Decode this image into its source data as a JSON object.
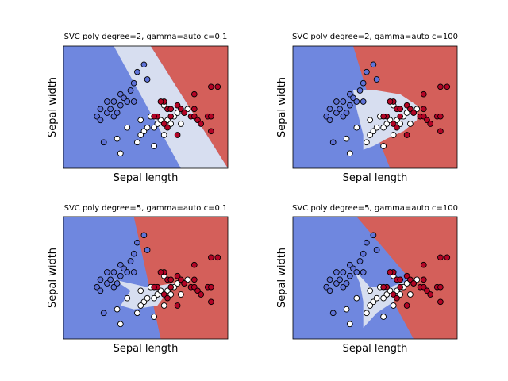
{
  "colors": {
    "class0_region": "#6f87df",
    "class1_region": "#d7def0",
    "class2_region": "#d45f5a",
    "class0_point": "#5f73d8",
    "class1_point": "#ffffff",
    "class2_point": "#b40426",
    "point_edge": "#000000"
  },
  "chart_data": [
    {
      "type": "scatter",
      "title": "SVC poly degree=2, gamma=auto c=0.1",
      "xlabel": "Sepal length",
      "ylabel": "Sepal width",
      "xticks": false,
      "yticks": false,
      "regions": {
        "class0": [
          [
            3.3,
            4.9
          ],
          [
            4.8,
            4.9
          ],
          [
            6.8,
            1.6
          ],
          [
            3.3,
            1.6
          ]
        ],
        "class1": [
          [
            4.8,
            4.9
          ],
          [
            5.9,
            4.9
          ],
          [
            8.2,
            1.6
          ],
          [
            6.8,
            1.6
          ]
        ],
        "class2": [
          [
            5.9,
            4.9
          ],
          [
            8.2,
            4.9
          ],
          [
            8.2,
            1.6
          ]
        ]
      }
    },
    {
      "type": "scatter",
      "title": "SVC poly degree=2, gamma=auto c=100",
      "xlabel": "Sepal length",
      "ylabel": "Sepal width",
      "xticks": false,
      "yticks": false,
      "regions": {
        "class0": [
          [
            3.3,
            4.9
          ],
          [
            5.1,
            4.9
          ],
          [
            5.6,
            3.4
          ],
          [
            5.8,
            2.5
          ],
          [
            6.2,
            1.6
          ],
          [
            3.3,
            1.6
          ]
        ],
        "class1": [
          [
            5.1,
            3.7
          ],
          [
            5.8,
            3.7
          ],
          [
            6.5,
            3.6
          ],
          [
            7.0,
            3.3
          ],
          [
            7.0,
            2.9
          ],
          [
            6.6,
            2.6
          ],
          [
            6.1,
            2.4
          ],
          [
            5.7,
            2.2
          ],
          [
            5.4,
            2.1
          ],
          [
            5.4,
            2.5
          ],
          [
            5.2,
            3.2
          ]
        ],
        "class2": [
          [
            5.1,
            4.9
          ],
          [
            8.2,
            4.9
          ],
          [
            8.2,
            1.6
          ],
          [
            6.2,
            1.6
          ],
          [
            5.8,
            2.5
          ],
          [
            5.6,
            3.4
          ]
        ]
      }
    },
    {
      "type": "scatter",
      "title": "SVC poly degree=5, gamma=auto c=0.1",
      "xlabel": "Sepal length",
      "ylabel": "Sepal width",
      "xticks": false,
      "yticks": false,
      "regions": {
        "class0": [
          [
            3.3,
            4.9
          ],
          [
            5.4,
            4.9
          ],
          [
            6.2,
            1.6
          ],
          [
            3.3,
            1.6
          ]
        ],
        "class1": [
          [
            4.8,
            3.2
          ],
          [
            5.8,
            3.0
          ],
          [
            6.6,
            3.1
          ],
          [
            6.1,
            2.5
          ],
          [
            5.4,
            2.4
          ],
          [
            5.0,
            2.5
          ],
          [
            5.3,
            2.9
          ]
        ],
        "class2": [
          [
            5.4,
            4.9
          ],
          [
            8.2,
            4.9
          ],
          [
            8.2,
            1.6
          ],
          [
            6.2,
            1.6
          ]
        ]
      }
    },
    {
      "type": "scatter",
      "title": "SVC poly degree=5, gamma=auto c=100",
      "xlabel": "Sepal length",
      "ylabel": "Sepal width",
      "xticks": false,
      "yticks": false,
      "regions": {
        "class0": [
          [
            3.3,
            4.9
          ],
          [
            5.2,
            4.9
          ],
          [
            6.9,
            1.6
          ],
          [
            3.3,
            1.6
          ]
        ],
        "class1": [
          [
            5.1,
            3.5
          ],
          [
            5.6,
            3.0
          ],
          [
            6.2,
            3.0
          ],
          [
            6.8,
            3.2
          ],
          [
            6.3,
            2.6
          ],
          [
            5.8,
            2.3
          ],
          [
            5.4,
            1.9
          ],
          [
            5.4,
            2.6
          ],
          [
            5.3,
            3.1
          ]
        ],
        "class2": [
          [
            5.2,
            4.9
          ],
          [
            8.2,
            4.9
          ],
          [
            8.2,
            1.6
          ],
          [
            6.9,
            1.6
          ],
          [
            6.3,
            2.6
          ],
          [
            6.8,
            3.2
          ]
        ]
      }
    }
  ],
  "scatter_points": {
    "class0": [
      [
        4.3,
        3.0
      ],
      [
        4.4,
        2.9
      ],
      [
        4.4,
        3.2
      ],
      [
        4.5,
        2.3
      ],
      [
        4.6,
        3.4
      ],
      [
        4.6,
        3.1
      ],
      [
        4.7,
        3.2
      ],
      [
        4.8,
        3.4
      ],
      [
        4.8,
        3.0
      ],
      [
        4.9,
        3.1
      ],
      [
        5.0,
        3.6
      ],
      [
        5.0,
        3.3
      ],
      [
        5.1,
        3.5
      ],
      [
        5.2,
        3.4
      ],
      [
        5.3,
        3.7
      ],
      [
        5.4,
        3.9
      ],
      [
        5.4,
        3.4
      ],
      [
        5.5,
        4.2
      ],
      [
        5.7,
        4.4
      ],
      [
        5.8,
        4.0
      ]
    ],
    "class1": [
      [
        4.9,
        2.4
      ],
      [
        5.0,
        2.0
      ],
      [
        5.2,
        2.7
      ],
      [
        5.5,
        2.3
      ],
      [
        5.6,
        2.9
      ],
      [
        5.7,
        2.6
      ],
      [
        5.8,
        2.7
      ],
      [
        5.9,
        3.0
      ],
      [
        6.0,
        2.2
      ],
      [
        6.1,
        2.8
      ],
      [
        6.2,
        2.9
      ],
      [
        6.3,
        3.3
      ],
      [
        6.4,
        2.9
      ],
      [
        6.5,
        2.8
      ],
      [
        6.6,
        3.0
      ],
      [
        6.7,
        3.1
      ],
      [
        6.8,
        2.8
      ],
      [
        6.9,
        3.1
      ],
      [
        7.0,
        3.2
      ],
      [
        6.3,
        2.5
      ],
      [
        5.6,
        2.5
      ],
      [
        6.0,
        2.7
      ]
    ],
    "class2": [
      [
        6.1,
        3.0
      ],
      [
        6.3,
        2.8
      ],
      [
        6.4,
        3.2
      ],
      [
        6.5,
        3.0
      ],
      [
        6.5,
        3.2
      ],
      [
        6.7,
        2.5
      ],
      [
        6.7,
        3.3
      ],
      [
        6.8,
        3.2
      ],
      [
        6.9,
        3.1
      ],
      [
        7.1,
        3.0
      ],
      [
        7.2,
        3.6
      ],
      [
        7.2,
        3.0
      ],
      [
        7.3,
        2.9
      ],
      [
        7.4,
        2.8
      ],
      [
        7.6,
        3.0
      ],
      [
        7.7,
        3.8
      ],
      [
        7.7,
        2.6
      ],
      [
        7.7,
        3.0
      ],
      [
        7.9,
        3.8
      ],
      [
        6.3,
        3.4
      ],
      [
        6.4,
        2.7
      ],
      [
        6.0,
        3.0
      ],
      [
        6.2,
        3.4
      ],
      [
        7.2,
        3.2
      ]
    ]
  }
}
